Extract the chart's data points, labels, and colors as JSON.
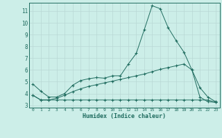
{
  "xlabel": "Humidex (Indice chaleur)",
  "bg_color": "#cceee8",
  "grid_color": "#b8d8d4",
  "line_color": "#1e6b5e",
  "xlim": [
    -0.5,
    23.5
  ],
  "ylim": [
    2.8,
    11.7
  ],
  "yticks": [
    3,
    4,
    5,
    6,
    7,
    8,
    9,
    10,
    11
  ],
  "xticks": [
    0,
    1,
    2,
    3,
    4,
    5,
    6,
    7,
    8,
    9,
    10,
    11,
    12,
    13,
    14,
    15,
    16,
    17,
    18,
    19,
    20,
    21,
    22,
    23
  ],
  "line1_x": [
    0,
    1,
    2,
    3,
    4,
    5,
    6,
    7,
    8,
    9,
    10,
    11,
    12,
    13,
    14,
    15,
    16,
    17,
    18,
    19,
    20,
    21,
    22,
    23
  ],
  "line1_y": [
    4.8,
    4.2,
    3.7,
    3.7,
    4.0,
    4.7,
    5.1,
    5.25,
    5.35,
    5.3,
    5.5,
    5.5,
    6.5,
    7.4,
    9.4,
    11.45,
    11.2,
    9.6,
    8.5,
    7.5,
    6.0,
    4.5,
    3.7,
    3.3
  ],
  "line2_x": [
    0,
    1,
    2,
    3,
    4,
    5,
    6,
    7,
    8,
    9,
    10,
    11,
    12,
    13,
    14,
    15,
    16,
    17,
    18,
    19,
    20,
    21,
    22,
    23
  ],
  "line2_y": [
    3.85,
    3.45,
    3.45,
    3.45,
    3.45,
    3.45,
    3.45,
    3.45,
    3.45,
    3.45,
    3.45,
    3.45,
    3.45,
    3.45,
    3.45,
    3.45,
    3.45,
    3.45,
    3.45,
    3.45,
    3.45,
    3.45,
    3.45,
    3.25
  ],
  "line3_x": [
    0,
    1,
    2,
    3,
    4,
    5,
    6,
    7,
    8,
    9,
    10,
    11,
    12,
    13,
    14,
    15,
    16,
    17,
    18,
    19,
    20,
    21,
    22,
    23
  ],
  "line3_y": [
    3.85,
    3.45,
    3.45,
    3.6,
    3.85,
    4.15,
    4.4,
    4.6,
    4.75,
    4.9,
    5.05,
    5.2,
    5.35,
    5.5,
    5.65,
    5.85,
    6.05,
    6.2,
    6.35,
    6.5,
    6.0,
    3.7,
    3.3,
    3.25
  ]
}
